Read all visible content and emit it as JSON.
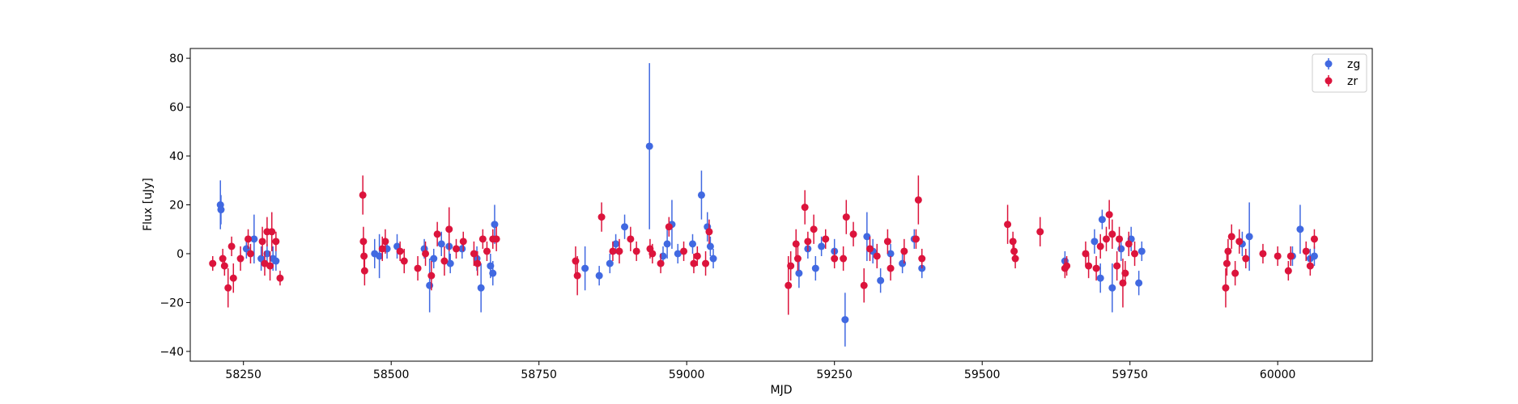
{
  "chart_data": {
    "type": "scatter",
    "title": "",
    "xlabel": "MJD",
    "ylabel": "Flux [uJy]",
    "xlim": [
      58160,
      60160
    ],
    "ylim": [
      -44,
      84
    ],
    "x_ticks": [
      58250,
      58500,
      58750,
      59000,
      59250,
      59500,
      59750,
      60000
    ],
    "y_ticks": [
      -40,
      -20,
      0,
      20,
      40,
      60,
      80
    ],
    "grid": false,
    "legend": "top-right",
    "colors": {
      "zg": "#4169e1",
      "zr": "#dc143c"
    },
    "series": [
      {
        "name": "zg",
        "color": "#4169e1",
        "points": [
          {
            "x": 58211,
            "y": 20,
            "err": 10
          },
          {
            "x": 58212,
            "y": 18,
            "err": 6
          },
          {
            "x": 58255,
            "y": 2,
            "err": 4
          },
          {
            "x": 58268,
            "y": 6,
            "err": 10
          },
          {
            "x": 58280,
            "y": -2,
            "err": 5
          },
          {
            "x": 58290,
            "y": 0,
            "err": 4
          },
          {
            "x": 58300,
            "y": -2,
            "err": 5
          },
          {
            "x": 58305,
            "y": -3,
            "err": 4
          },
          {
            "x": 58472,
            "y": 0,
            "err": 6
          },
          {
            "x": 58480,
            "y": -1,
            "err": 9
          },
          {
            "x": 58493,
            "y": 2,
            "err": 4
          },
          {
            "x": 58510,
            "y": 3,
            "err": 5
          },
          {
            "x": 58556,
            "y": 2,
            "err": 4
          },
          {
            "x": 58565,
            "y": -13,
            "err": 11
          },
          {
            "x": 58572,
            "y": -2,
            "err": 4
          },
          {
            "x": 58585,
            "y": 4,
            "err": 5
          },
          {
            "x": 58598,
            "y": 3,
            "err": 6
          },
          {
            "x": 58600,
            "y": -4,
            "err": 4
          },
          {
            "x": 58620,
            "y": 2,
            "err": 4
          },
          {
            "x": 58645,
            "y": -2,
            "err": 5
          },
          {
            "x": 58652,
            "y": -14,
            "err": 10
          },
          {
            "x": 58668,
            "y": -5,
            "err": 5
          },
          {
            "x": 58672,
            "y": -8,
            "err": 5
          },
          {
            "x": 58675,
            "y": 12,
            "err": 8
          },
          {
            "x": 58828,
            "y": -6,
            "err": 9
          },
          {
            "x": 58852,
            "y": -9,
            "err": 4
          },
          {
            "x": 58870,
            "y": -4,
            "err": 4
          },
          {
            "x": 58880,
            "y": 4,
            "err": 4
          },
          {
            "x": 58895,
            "y": 11,
            "err": 5
          },
          {
            "x": 58937,
            "y": 44,
            "err": 34
          },
          {
            "x": 58960,
            "y": -1,
            "err": 4
          },
          {
            "x": 58967,
            "y": 4,
            "err": 6
          },
          {
            "x": 58975,
            "y": 12,
            "err": 10
          },
          {
            "x": 58985,
            "y": 0,
            "err": 4
          },
          {
            "x": 59010,
            "y": 4,
            "err": 4
          },
          {
            "x": 59025,
            "y": 24,
            "err": 10
          },
          {
            "x": 59035,
            "y": 11,
            "err": 6
          },
          {
            "x": 59040,
            "y": 3,
            "err": 4
          },
          {
            "x": 59045,
            "y": -2,
            "err": 4
          },
          {
            "x": 59190,
            "y": -8,
            "err": 6
          },
          {
            "x": 59205,
            "y": 2,
            "err": 4
          },
          {
            "x": 59218,
            "y": -6,
            "err": 5
          },
          {
            "x": 59228,
            "y": 3,
            "err": 4
          },
          {
            "x": 59250,
            "y": 1,
            "err": 5
          },
          {
            "x": 59268,
            "y": -27,
            "err": 11
          },
          {
            "x": 59305,
            "y": 7,
            "err": 10
          },
          {
            "x": 59315,
            "y": 1,
            "err": 5
          },
          {
            "x": 59328,
            "y": -11,
            "err": 5
          },
          {
            "x": 59345,
            "y": 0,
            "err": 4
          },
          {
            "x": 59365,
            "y": -4,
            "err": 4
          },
          {
            "x": 59385,
            "y": 6,
            "err": 4
          },
          {
            "x": 59398,
            "y": -6,
            "err": 4
          },
          {
            "x": 59640,
            "y": -3,
            "err": 4
          },
          {
            "x": 59690,
            "y": 5,
            "err": 5
          },
          {
            "x": 59700,
            "y": -10,
            "err": 6
          },
          {
            "x": 59703,
            "y": 14,
            "err": 4
          },
          {
            "x": 59720,
            "y": -14,
            "err": 10
          },
          {
            "x": 59735,
            "y": 2,
            "err": 5
          },
          {
            "x": 59752,
            "y": 6,
            "err": 5
          },
          {
            "x": 59765,
            "y": -12,
            "err": 5
          },
          {
            "x": 59770,
            "y": 1,
            "err": 4
          },
          {
            "x": 59940,
            "y": 4,
            "err": 5
          },
          {
            "x": 59952,
            "y": 7,
            "err": 14
          },
          {
            "x": 60025,
            "y": -1,
            "err": 4
          },
          {
            "x": 60038,
            "y": 10,
            "err": 10
          },
          {
            "x": 60055,
            "y": -2,
            "err": 4
          },
          {
            "x": 60062,
            "y": -1,
            "err": 4
          }
        ]
      },
      {
        "name": "zr",
        "color": "#dc143c",
        "points": [
          {
            "x": 58198,
            "y": -4,
            "err": 3
          },
          {
            "x": 58215,
            "y": -2,
            "err": 4
          },
          {
            "x": 58218,
            "y": -5,
            "err": 4
          },
          {
            "x": 58224,
            "y": -14,
            "err": 8
          },
          {
            "x": 58230,
            "y": 3,
            "err": 4
          },
          {
            "x": 58233,
            "y": -10,
            "err": 6
          },
          {
            "x": 58245,
            "y": -2,
            "err": 5
          },
          {
            "x": 58258,
            "y": 6,
            "err": 4
          },
          {
            "x": 58262,
            "y": 0,
            "err": 4
          },
          {
            "x": 58282,
            "y": 5,
            "err": 6
          },
          {
            "x": 58286,
            "y": -4,
            "err": 5
          },
          {
            "x": 58290,
            "y": 9,
            "err": 6
          },
          {
            "x": 58295,
            "y": -5,
            "err": 6
          },
          {
            "x": 58298,
            "y": 9,
            "err": 8
          },
          {
            "x": 58305,
            "y": 5,
            "err": 4
          },
          {
            "x": 58312,
            "y": -10,
            "err": 3
          },
          {
            "x": 58452,
            "y": 24,
            "err": 8
          },
          {
            "x": 58453,
            "y": 5,
            "err": 6
          },
          {
            "x": 58454,
            "y": -1,
            "err": 5
          },
          {
            "x": 58455,
            "y": -7,
            "err": 6
          },
          {
            "x": 58485,
            "y": 2,
            "err": 5
          },
          {
            "x": 58490,
            "y": 5,
            "err": 5
          },
          {
            "x": 58515,
            "y": 1,
            "err": 4
          },
          {
            "x": 58522,
            "y": -3,
            "err": 5
          },
          {
            "x": 58545,
            "y": -6,
            "err": 5
          },
          {
            "x": 58558,
            "y": 0,
            "err": 5
          },
          {
            "x": 58568,
            "y": -9,
            "err": 6
          },
          {
            "x": 58578,
            "y": 8,
            "err": 5
          },
          {
            "x": 58590,
            "y": -3,
            "err": 6
          },
          {
            "x": 58598,
            "y": 10,
            "err": 9
          },
          {
            "x": 58610,
            "y": 2,
            "err": 4
          },
          {
            "x": 58622,
            "y": 5,
            "err": 4
          },
          {
            "x": 58640,
            "y": 0,
            "err": 5
          },
          {
            "x": 58646,
            "y": -4,
            "err": 5
          },
          {
            "x": 58655,
            "y": 6,
            "err": 4
          },
          {
            "x": 58662,
            "y": 1,
            "err": 4
          },
          {
            "x": 58672,
            "y": 6,
            "err": 4
          },
          {
            "x": 58678,
            "y": 6,
            "err": 5
          },
          {
            "x": 58812,
            "y": -3,
            "err": 6
          },
          {
            "x": 58815,
            "y": -9,
            "err": 8
          },
          {
            "x": 58856,
            "y": 15,
            "err": 6
          },
          {
            "x": 58875,
            "y": 1,
            "err": 4
          },
          {
            "x": 58886,
            "y": 1,
            "err": 5
          },
          {
            "x": 58905,
            "y": 6,
            "err": 5
          },
          {
            "x": 58915,
            "y": 1,
            "err": 4
          },
          {
            "x": 58938,
            "y": 2,
            "err": 4
          },
          {
            "x": 58942,
            "y": 0,
            "err": 4
          },
          {
            "x": 58956,
            "y": -4,
            "err": 4
          },
          {
            "x": 58970,
            "y": 11,
            "err": 4
          },
          {
            "x": 58995,
            "y": 1,
            "err": 4
          },
          {
            "x": 59012,
            "y": -4,
            "err": 4
          },
          {
            "x": 59018,
            "y": -1,
            "err": 4
          },
          {
            "x": 59032,
            "y": -4,
            "err": 5
          },
          {
            "x": 59038,
            "y": 9,
            "err": 5
          },
          {
            "x": 59172,
            "y": -13,
            "err": 12
          },
          {
            "x": 59176,
            "y": -5,
            "err": 6
          },
          {
            "x": 59185,
            "y": 4,
            "err": 6
          },
          {
            "x": 59188,
            "y": -2,
            "err": 5
          },
          {
            "x": 59200,
            "y": 19,
            "err": 7
          },
          {
            "x": 59205,
            "y": 5,
            "err": 4
          },
          {
            "x": 59215,
            "y": 10,
            "err": 6
          },
          {
            "x": 59235,
            "y": 6,
            "err": 4
          },
          {
            "x": 59250,
            "y": -2,
            "err": 4
          },
          {
            "x": 59265,
            "y": -2,
            "err": 5
          },
          {
            "x": 59270,
            "y": 15,
            "err": 7
          },
          {
            "x": 59282,
            "y": 8,
            "err": 5
          },
          {
            "x": 59300,
            "y": -13,
            "err": 7
          },
          {
            "x": 59310,
            "y": 2,
            "err": 5
          },
          {
            "x": 59322,
            "y": -1,
            "err": 5
          },
          {
            "x": 59340,
            "y": 5,
            "err": 5
          },
          {
            "x": 59345,
            "y": -6,
            "err": 5
          },
          {
            "x": 59368,
            "y": 1,
            "err": 5
          },
          {
            "x": 59388,
            "y": 6,
            "err": 4
          },
          {
            "x": 59392,
            "y": 22,
            "err": 10
          },
          {
            "x": 59398,
            "y": -2,
            "err": 4
          },
          {
            "x": 59543,
            "y": 12,
            "err": 8
          },
          {
            "x": 59552,
            "y": 5,
            "err": 4
          },
          {
            "x": 59554,
            "y": 1,
            "err": 4
          },
          {
            "x": 59556,
            "y": -2,
            "err": 4
          },
          {
            "x": 59598,
            "y": 9,
            "err": 6
          },
          {
            "x": 59640,
            "y": -6,
            "err": 4
          },
          {
            "x": 59643,
            "y": -5,
            "err": 4
          },
          {
            "x": 59675,
            "y": 0,
            "err": 5
          },
          {
            "x": 59680,
            "y": -5,
            "err": 5
          },
          {
            "x": 59693,
            "y": -6,
            "err": 5
          },
          {
            "x": 59700,
            "y": 3,
            "err": 5
          },
          {
            "x": 59710,
            "y": 6,
            "err": 5
          },
          {
            "x": 59715,
            "y": 16,
            "err": 6
          },
          {
            "x": 59720,
            "y": 8,
            "err": 6
          },
          {
            "x": 59728,
            "y": -5,
            "err": 6
          },
          {
            "x": 59732,
            "y": 6,
            "err": 5
          },
          {
            "x": 59738,
            "y": -12,
            "err": 10
          },
          {
            "x": 59742,
            "y": -8,
            "err": 5
          },
          {
            "x": 59748,
            "y": 4,
            "err": 5
          },
          {
            "x": 59758,
            "y": 0,
            "err": 5
          },
          {
            "x": 59912,
            "y": -14,
            "err": 8
          },
          {
            "x": 59914,
            "y": -4,
            "err": 5
          },
          {
            "x": 59916,
            "y": 1,
            "err": 5
          },
          {
            "x": 59922,
            "y": 7,
            "err": 5
          },
          {
            "x": 59928,
            "y": -8,
            "err": 5
          },
          {
            "x": 59935,
            "y": 5,
            "err": 5
          },
          {
            "x": 59946,
            "y": -2,
            "err": 4
          },
          {
            "x": 59975,
            "y": 0,
            "err": 4
          },
          {
            "x": 60000,
            "y": -1,
            "err": 4
          },
          {
            "x": 60018,
            "y": -7,
            "err": 4
          },
          {
            "x": 60022,
            "y": -1,
            "err": 4
          },
          {
            "x": 60048,
            "y": 1,
            "err": 4
          },
          {
            "x": 60055,
            "y": -5,
            "err": 4
          },
          {
            "x": 60062,
            "y": 6,
            "err": 4
          }
        ]
      }
    ]
  }
}
